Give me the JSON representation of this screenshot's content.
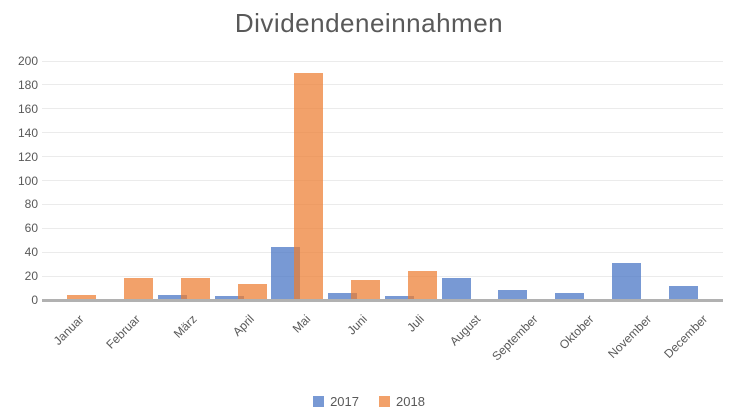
{
  "title": "Dividendeneinnahmen",
  "chart_data": {
    "type": "bar",
    "title": "Dividendeneinnahmen",
    "categories": [
      "Januar",
      "Februar",
      "März",
      "April",
      "Mai",
      "Juni",
      "Juli",
      "August",
      "September",
      "Oktober",
      "November",
      "December"
    ],
    "series": [
      {
        "name": "2017",
        "color": "rgba(68,114,196,0.72)",
        "values": [
          0,
          0,
          4,
          3,
          44,
          6,
          3,
          18,
          8,
          6,
          31,
          12
        ]
      },
      {
        "name": "2018",
        "color": "rgba(237,125,49,0.72)",
        "values": [
          4,
          18,
          18,
          13,
          190,
          17,
          24,
          0,
          0,
          0,
          0,
          0
        ]
      }
    ],
    "xlabel": "",
    "ylabel": "",
    "ylim": [
      0,
      200
    ],
    "yticks": [
      0,
      20,
      40,
      60,
      80,
      100,
      120,
      140,
      160,
      180,
      200
    ],
    "grid": true,
    "legend_position": "bottom",
    "x_label_rotation_deg": -45
  },
  "colors": {
    "series_2017": "rgba(68,114,196,0.72)",
    "series_2018": "rgba(237,125,49,0.72)",
    "gridline": "#ebebeb",
    "axis_line": "#b1b1b1",
    "text": "#595959",
    "background": "#ffffff"
  }
}
